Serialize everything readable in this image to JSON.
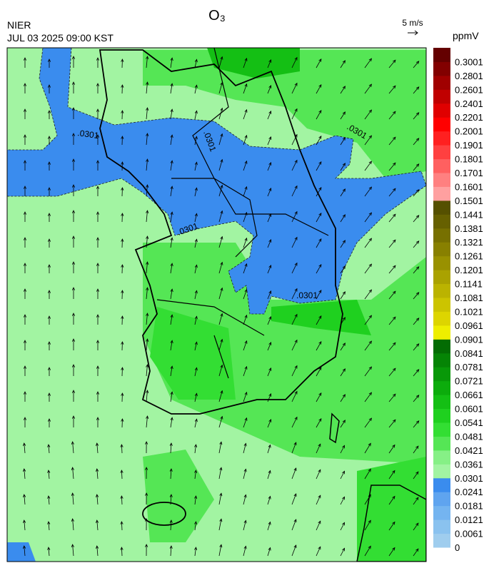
{
  "header": {
    "agency": "NIER",
    "datetime": "JUL 03 2025 09:00 KST",
    "title": "O₃",
    "wind_scale": "5 m/s"
  },
  "colorbar": {
    "unit": "ppmV",
    "levels": [
      0,
      0.0061,
      0.0121,
      0.0181,
      0.0241,
      0.0301,
      0.0361,
      0.0421,
      0.0481,
      0.0541,
      0.0601,
      0.0661,
      0.0721,
      0.0781,
      0.0841,
      0.0901,
      0.0961,
      0.1021,
      0.1081,
      0.1141,
      0.1201,
      0.1261,
      0.1321,
      0.1381,
      0.1441,
      0.1501,
      0.1601,
      0.1701,
      0.1801,
      0.1901,
      0.2001,
      0.2201,
      0.2401,
      0.2601,
      0.2801,
      0.3001
    ],
    "colors": [
      "#9fcdee",
      "#8ac2ef",
      "#74b4f0",
      "#5fa4ef",
      "#3a8cee",
      "#a2f4a2",
      "#86f086",
      "#55e655",
      "#33de33",
      "#1fd01f",
      "#14bf14",
      "#0cac0c",
      "#089808",
      "#058405",
      "#036c03",
      "#eeee00",
      "#ddd500",
      "#ccc400",
      "#bbb300",
      "#aaa200",
      "#999100",
      "#888000",
      "#777000",
      "#666000",
      "#555000",
      "#ffa0a0",
      "#ff8080",
      "#ff6060",
      "#ff4040",
      "#ff2020",
      "#ff0000",
      "#e00000",
      "#c00000",
      "#a00000",
      "#820000",
      "#640000"
    ]
  },
  "contour_labels": [
    ".0301",
    ".0301",
    ".0301",
    ".0301",
    ".0301"
  ]
}
